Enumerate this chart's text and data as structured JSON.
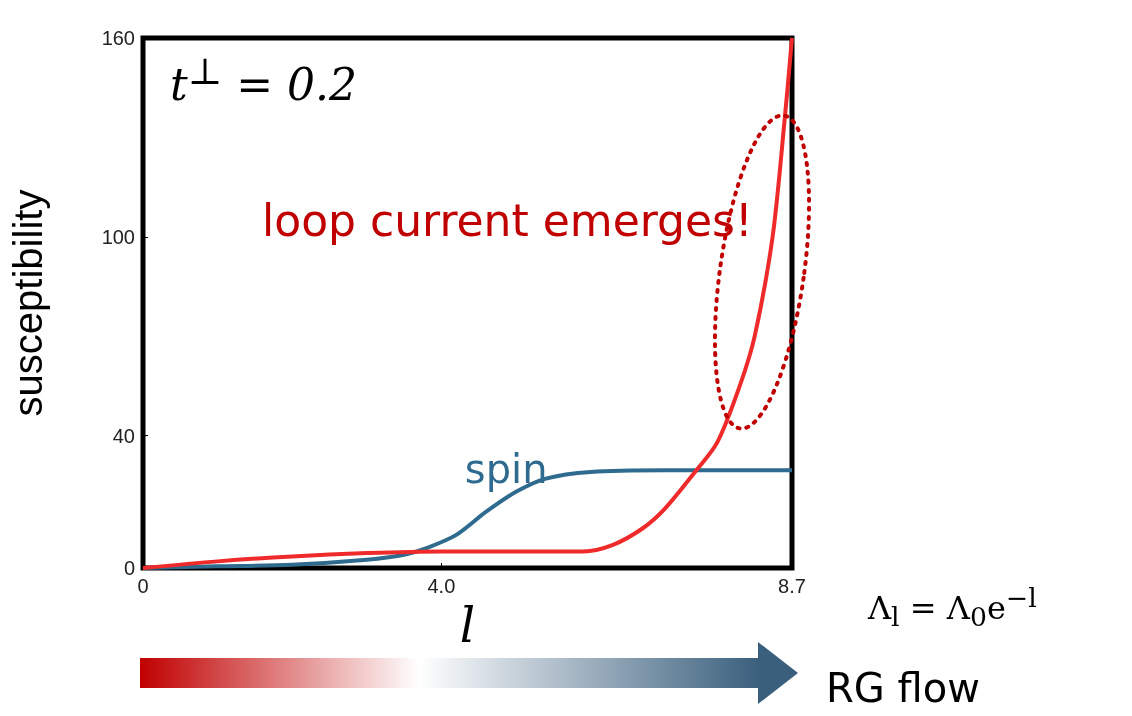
{
  "chart_data": {
    "type": "line",
    "xlabel": "l",
    "ylabel": "susceptibility",
    "annotations": [
      "t$^{⊥}$ = 0.2",
      "loop current emerges!",
      "Λ$_{l}$ = Λ$_{0}$e$^{−l}$",
      "RG flow"
    ],
    "series": [
      {
        "name": "spin",
        "color": "#2e6b8e",
        "x": [
          0,
          1,
          2,
          3,
          3.5,
          3.8,
          4.2,
          4.6,
          5.0,
          5.4,
          6.0,
          7.0,
          8.7
        ],
        "values": [
          0,
          0.5,
          1,
          2.5,
          4,
          6,
          10,
          17,
          23,
          27,
          29,
          29.5,
          29.5
        ]
      },
      {
        "color": "#ee2a2a",
        "x": [
          0,
          1,
          2,
          3,
          4,
          5,
          5.9,
          6.3,
          6.7,
          7.0,
          7.4,
          7.7,
          8.0,
          8.2,
          8.44,
          8.6,
          8.7
        ],
        "values": [
          0,
          2,
          3.5,
          4.5,
          5,
          5,
          5,
          7,
          12,
          18,
          29,
          38,
          55,
          70,
          100,
          135,
          160
        ]
      }
    ],
    "xlim": [
      0,
      8.7
    ],
    "xticks": [
      0,
      {
        "value": 4,
        "label": "4.0"
      },
      8.7
    ],
    "ylim": [
      0,
      160
    ],
    "yticks": [
      0,
      40,
      100,
      160
    ],
    "grid": false,
    "legend": false,
    "marker": "none",
    "line_style": "solid"
  }
}
